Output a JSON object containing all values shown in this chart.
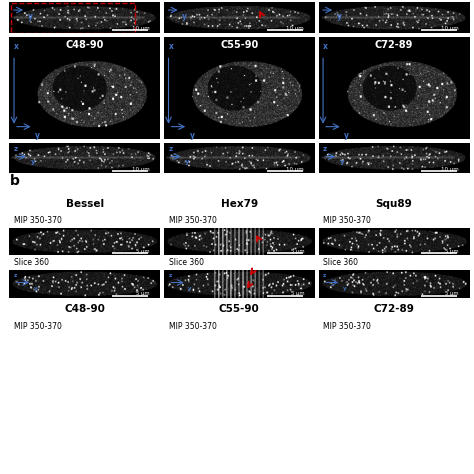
{
  "bg_color": "#ffffff",
  "border_color": "#4472c4",
  "red_color": "#cc0000",
  "section_a_titles": [
    "C48-90",
    "C55-90",
    "C72-89"
  ],
  "section_b_col_headers": [
    "Bessel",
    "Hex79",
    "Squ89"
  ],
  "section_b_bottom_headers": [
    "C48-90",
    "C55-90",
    "C72-89"
  ],
  "mip_label": "MIP 350-370",
  "slice_label": "Slice 360",
  "scale_10um": "10 μm",
  "scale_5um": "5 μm",
  "axis_color": "#4472c4",
  "text_color_white": "#ffffff",
  "text_color_black": "#000000"
}
